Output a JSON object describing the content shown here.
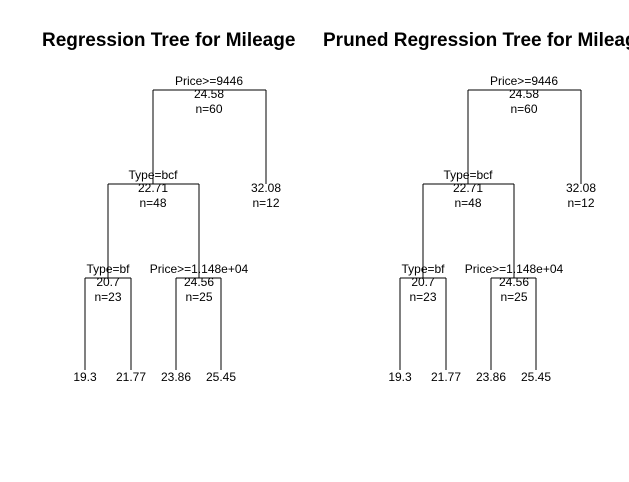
{
  "panels": [
    {
      "title": "Regression Tree for Mileage",
      "nodes": [
        {
          "id": "root",
          "split": "Price>=9446",
          "value": "24.58",
          "n": "n=60"
        },
        {
          "id": "L",
          "split": "Type=bcf",
          "value": "22.71",
          "n": "n=48"
        },
        {
          "id": "R",
          "value": "32.08",
          "n": "n=12"
        },
        {
          "id": "LL",
          "split": "Type=bf",
          "value": "20.7",
          "n": "n=23"
        },
        {
          "id": "LR",
          "split": "Price>=1.148e+04",
          "value": "24.56",
          "n": "n=25"
        },
        {
          "id": "LLL",
          "value": "19.3"
        },
        {
          "id": "LLR",
          "value": "21.77"
        },
        {
          "id": "LRL",
          "value": "23.86"
        },
        {
          "id": "LRR",
          "value": "25.45"
        }
      ]
    },
    {
      "title": "Pruned Regression Tree for Mileage",
      "nodes": [
        {
          "id": "root",
          "split": "Price>=9446",
          "value": "24.58",
          "n": "n=60"
        },
        {
          "id": "L",
          "split": "Type=bcf",
          "value": "22.71",
          "n": "n=48"
        },
        {
          "id": "R",
          "value": "32.08",
          "n": "n=12"
        },
        {
          "id": "LL",
          "split": "Type=bf",
          "value": "20.7",
          "n": "n=23"
        },
        {
          "id": "LR",
          "split": "Price>=1.148e+04",
          "value": "24.56",
          "n": "n=25"
        },
        {
          "id": "LLL",
          "value": "19.3"
        },
        {
          "id": "LLR",
          "value": "21.77"
        },
        {
          "id": "LRL",
          "value": "23.86"
        },
        {
          "id": "LRR",
          "value": "25.45"
        }
      ]
    }
  ]
}
